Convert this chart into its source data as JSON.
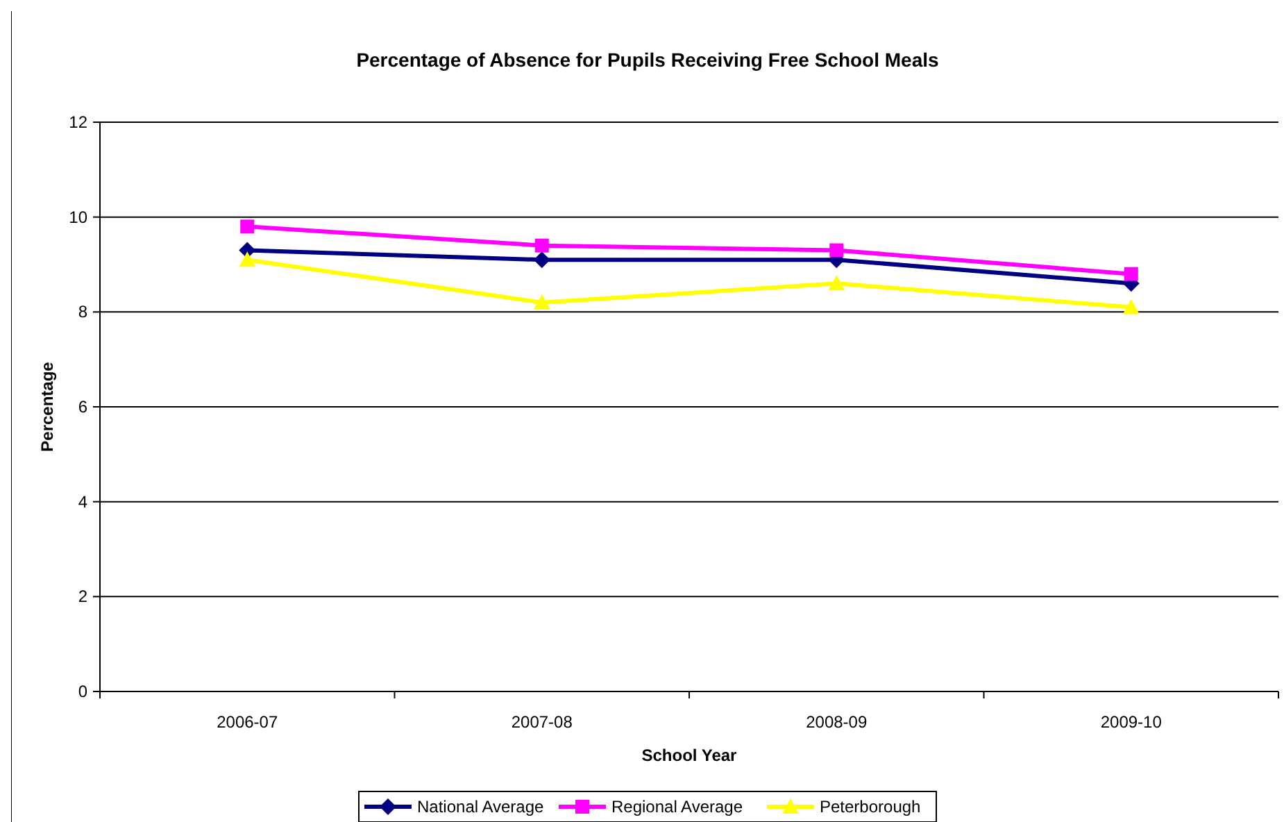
{
  "chart_data": {
    "type": "line",
    "title": "Percentage of Absence for Pupils Receiving Free School Meals",
    "xlabel": "School Year",
    "ylabel": "Percentage",
    "categories": [
      "2006-07",
      "2007-08",
      "2008-09",
      "2009-10"
    ],
    "series": [
      {
        "name": "National Average",
        "color": "#000080",
        "marker": "diamond",
        "values": [
          9.3,
          9.1,
          9.1,
          8.6
        ]
      },
      {
        "name": "Regional Average",
        "color": "#ff00ff",
        "marker": "square",
        "values": [
          9.8,
          9.4,
          9.3,
          8.8
        ]
      },
      {
        "name": "Peterborough",
        "color": "#ffff00",
        "marker": "triangle",
        "values": [
          9.1,
          8.2,
          8.6,
          8.1
        ]
      }
    ],
    "ylim": [
      0,
      12
    ],
    "yticks": [
      0,
      2,
      4,
      6,
      8,
      10,
      12
    ],
    "grid": "y",
    "legend": "bottom",
    "line_style": "solid"
  }
}
